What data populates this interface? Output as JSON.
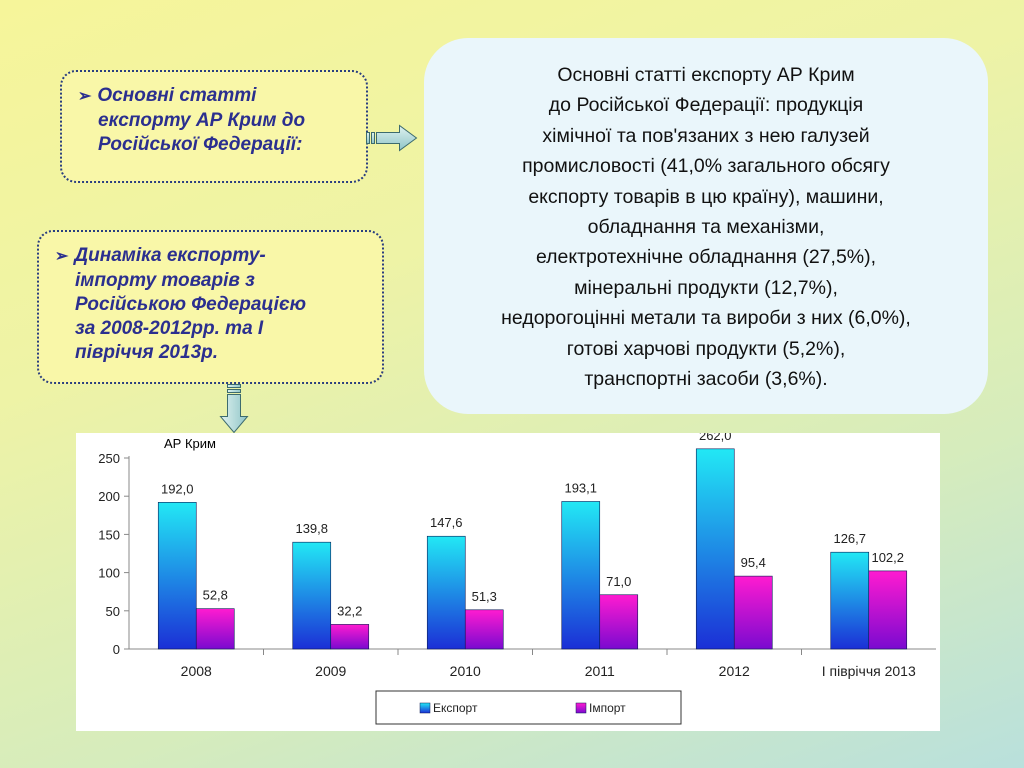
{
  "box_top": {
    "lines": [
      "Основні статті",
      "експорту АР Крим до",
      "Російської Федерації:"
    ]
  },
  "box_bottom": {
    "lines": [
      "Динаміка експорту-",
      "імпорту товарів з",
      "Російською Федерацією",
      "за 2008-2012рр. та І",
      "півріччя 2013р."
    ]
  },
  "info": {
    "text": "Основні статті експорту АР Крим\nдо Російської Федерації: продукція\nхімічної та пов'язаних з нею галузей\nпромисловості (41,0% загального обсягу\nекспорту товарів в цю країну), машини,\nобладнання та механізми,\nелектротехнічне обладнання (27,5%),\nмінеральні продукти (12,7%),\nнедорогоцінні  метали та вироби з них (6,0%),\nготові харчові продукти (5,2%),\nтранспортні засоби (3,6%)."
  },
  "colors": {
    "box_text": "#2b2f8f",
    "export_top": "#22e8f5",
    "export_bottom": "#1b2fd6",
    "import_top": "#ff1bd0",
    "import_bottom": "#7a0ad0"
  },
  "chart_data": {
    "type": "bar",
    "title": "АР Крим",
    "categories": [
      "2008",
      "2009",
      "2010",
      "2011",
      "2012",
      "І півріччя 2013"
    ],
    "series": [
      {
        "name": "Експорт",
        "values": [
          192.0,
          139.8,
          147.6,
          193.1,
          262.0,
          126.7
        ],
        "labels": [
          "192,0",
          "139,8",
          "147,6",
          "193,1",
          "262,0",
          "126,7"
        ]
      },
      {
        "name": "Імпорт",
        "values": [
          52.8,
          32.2,
          51.3,
          71.0,
          95.4,
          102.2
        ],
        "labels": [
          "52,8",
          "32,2",
          "51,3",
          "71,0",
          "95,4",
          "102,2"
        ]
      }
    ],
    "yticks": [
      "0",
      "50",
      "100",
      "150",
      "200",
      "250"
    ],
    "ylim": [
      0,
      250
    ],
    "grid": false,
    "legend_position": "bottom"
  }
}
